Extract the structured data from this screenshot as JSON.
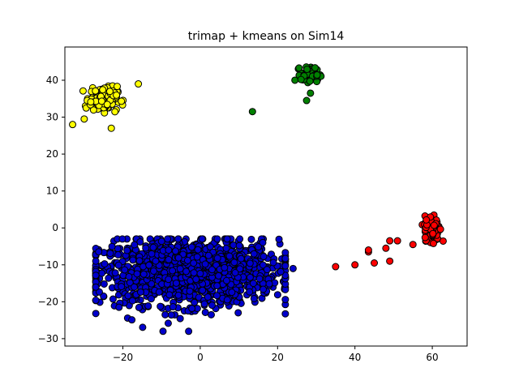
{
  "chart_data": {
    "type": "scatter",
    "title": "trimap + kmeans on Sim14",
    "xlabel": "",
    "ylabel": "",
    "xlim": [
      -35,
      69
    ],
    "ylim": [
      -32,
      49
    ],
    "xticks": [
      -20,
      0,
      20,
      40,
      60
    ],
    "yticks": [
      -30,
      -20,
      -10,
      0,
      10,
      20,
      30,
      40
    ],
    "grid": false,
    "legend": "none",
    "series": [
      {
        "color": "#0000cc",
        "cluster": {
          "center": [
            -3,
            -12
          ],
          "spread": [
            21,
            8
          ],
          "count": 1400,
          "xrange": [
            -27,
            22
          ],
          "yrange": [
            -28,
            -3
          ]
        },
        "points": [
          [
            -21,
            -21.5
          ],
          [
            -3,
            -28
          ],
          [
            24,
            -11
          ],
          [
            -27,
            -9
          ]
        ]
      },
      {
        "color": "#ffff00",
        "cluster": {
          "center": [
            -25,
            35
          ],
          "spread": [
            3.2,
            3.0
          ],
          "count": 160,
          "xrange": [
            -32,
            -18
          ],
          "yrange": [
            27,
            41
          ]
        },
        "points": [
          [
            -33,
            28
          ],
          [
            -23,
            27
          ],
          [
            -16,
            39
          ],
          [
            -30,
            29.5
          ]
        ]
      },
      {
        "color": "#008000",
        "cluster": {
          "center": [
            28.5,
            41.5
          ],
          "spread": [
            2.2,
            1.8
          ],
          "count": 80,
          "xrange": [
            24,
            33
          ],
          "yrange": [
            36,
            46
          ]
        },
        "points": [
          [
            13.5,
            31.5
          ],
          [
            27.5,
            34.5
          ],
          [
            28.5,
            36.5
          ]
        ]
      },
      {
        "color": "#ff0000",
        "cluster": {
          "center": [
            60,
            0
          ],
          "spread": [
            1.8,
            3.0
          ],
          "count": 160,
          "xrange": [
            55,
            64
          ],
          "yrange": [
            -5,
            7
          ]
        },
        "points": [
          [
            35,
            -10.5
          ],
          [
            40,
            -10
          ],
          [
            45,
            -9.5
          ],
          [
            49,
            -9
          ],
          [
            43.5,
            -6.5
          ],
          [
            48,
            -5.5
          ],
          [
            51,
            -3.5
          ],
          [
            49,
            -3.5
          ],
          [
            55,
            -4.5
          ],
          [
            43.5,
            -6
          ]
        ]
      }
    ]
  }
}
